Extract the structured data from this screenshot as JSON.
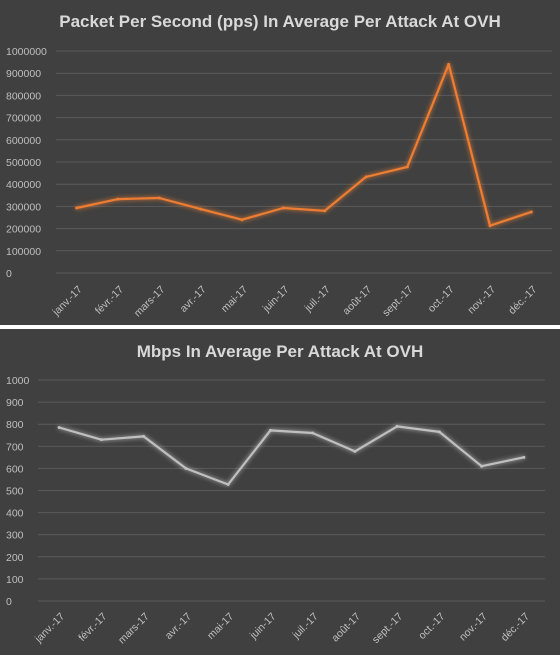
{
  "chart_data": [
    {
      "type": "line",
      "title": "Packet Per Second (pps) In Average Per Attack At OVH",
      "xlabel": "",
      "ylabel": "",
      "categories": [
        "janv.-17",
        "févr.-17",
        "mars-17",
        "avr.-17",
        "mai-17",
        "juin-17",
        "juil.-17",
        "août-17",
        "sept.-17",
        "oct.-17",
        "nov.-17",
        "déc.-17"
      ],
      "series": [
        {
          "values": [
            293000,
            333000,
            338000,
            288000,
            240000,
            293000,
            280000,
            433000,
            478000,
            940000,
            213000,
            275000
          ],
          "color": "#ed7d31"
        }
      ],
      "ylim": [
        0,
        1000000
      ],
      "yticks": [
        0,
        100000,
        200000,
        300000,
        400000,
        500000,
        600000,
        700000,
        800000,
        900000,
        1000000
      ],
      "grid": true,
      "legend": "none"
    },
    {
      "type": "line",
      "title": "Mbps In Average Per Attack At OVH",
      "xlabel": "",
      "ylabel": "",
      "categories": [
        "janv.-17",
        "févr.-17",
        "mars-17",
        "avr.-17",
        "mai-17",
        "juin-17",
        "juil.-17",
        "août-17",
        "sept.-17",
        "oct.-17",
        "nov.-17",
        "déc.-17"
      ],
      "series": [
        {
          "values": [
            785,
            730,
            745,
            600,
            527,
            772,
            760,
            677,
            790,
            765,
            610,
            650
          ],
          "color": "#bfbfbf"
        }
      ],
      "ylim": [
        0,
        1000
      ],
      "yticks": [
        0,
        100,
        200,
        300,
        400,
        500,
        600,
        700,
        800,
        900,
        1000
      ],
      "grid": true,
      "legend": "none"
    }
  ]
}
